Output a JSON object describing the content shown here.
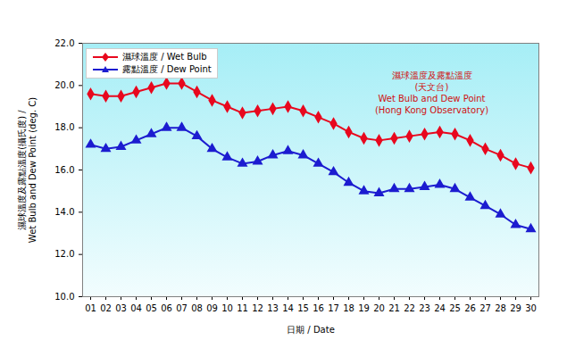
{
  "chart_data": {
    "type": "line",
    "title": "濕球溫度及露點溫度\n(天文台)\nWet Bulb and Dew Point\n(Hong Kong Observatory)",
    "x_label": "日期 / Date",
    "y_label": "濕球溫度及露點溫度(攝氏度) /\nWet Bulb and Dew Point (deg. C)",
    "categories": [
      "01",
      "02",
      "03",
      "04",
      "05",
      "06",
      "07",
      "08",
      "09",
      "10",
      "11",
      "12",
      "13",
      "14",
      "15",
      "16",
      "17",
      "18",
      "19",
      "20",
      "21",
      "22",
      "23",
      "24",
      "25",
      "26",
      "27",
      "28",
      "29",
      "30"
    ],
    "series": [
      {
        "name": "濕球溫度 / Wet Bulb",
        "color": "#e8081e",
        "marker": "diamond",
        "values": [
          19.6,
          19.5,
          19.5,
          19.7,
          19.9,
          20.1,
          20.1,
          19.7,
          19.3,
          19.0,
          18.7,
          18.8,
          18.9,
          19.0,
          18.8,
          18.5,
          18.2,
          17.8,
          17.5,
          17.4,
          17.5,
          17.6,
          17.7,
          17.8,
          17.7,
          17.4,
          17.0,
          16.7,
          16.3,
          16.1
        ]
      },
      {
        "name": "露點溫度 / Dew Point",
        "color": "#1c1cd0",
        "marker": "triangle",
        "values": [
          17.2,
          17.0,
          17.1,
          17.4,
          17.7,
          18.0,
          18.0,
          17.6,
          17.0,
          16.6,
          16.3,
          16.4,
          16.7,
          16.9,
          16.7,
          16.3,
          15.9,
          15.4,
          15.0,
          14.9,
          15.1,
          15.1,
          15.2,
          15.3,
          15.1,
          14.7,
          14.3,
          13.9,
          13.4,
          13.2
        ]
      }
    ],
    "ylim": [
      10,
      22
    ],
    "yticks": [
      {
        "value": 10,
        "label": "10.0"
      },
      {
        "value": 12,
        "label": "12.0"
      },
      {
        "value": 14,
        "label": "14.0"
      },
      {
        "value": 16,
        "label": "16.0"
      },
      {
        "value": 18,
        "label": "18.0"
      },
      {
        "value": 20,
        "label": "20.0"
      },
      {
        "value": 22,
        "label": "22.0"
      }
    ],
    "grid": false,
    "legend": "top-left"
  }
}
